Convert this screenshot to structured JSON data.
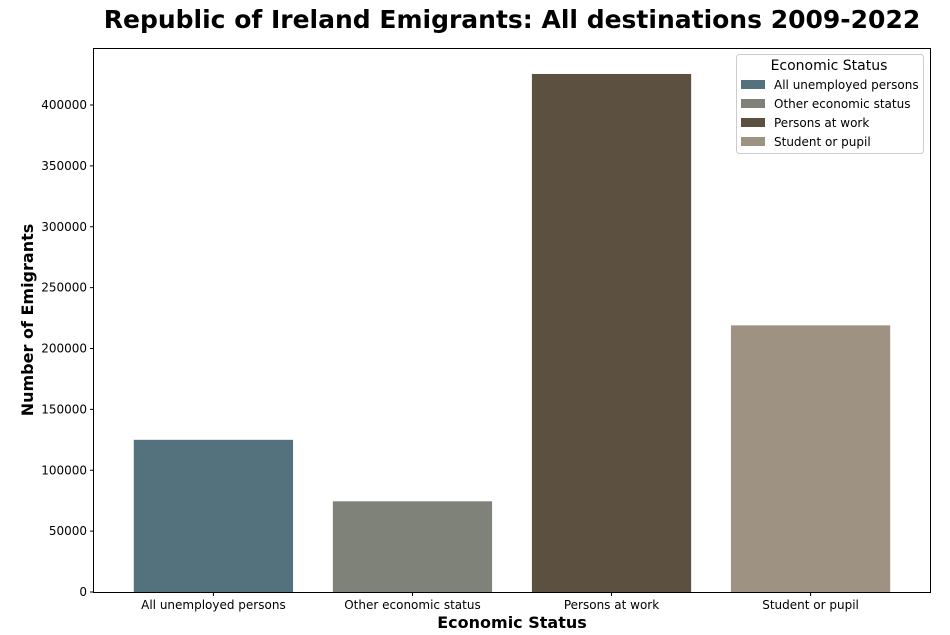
{
  "chart_data": {
    "type": "bar",
    "title": "Republic of Ireland Emigrants: All destinations 2009-2022",
    "xlabel": "Economic Status",
    "ylabel": "Number of Emigrants",
    "categories": [
      "All unemployed persons",
      "Other economic status",
      "Persons at work",
      "Student or pupil"
    ],
    "values": [
      125000,
      74500,
      425500,
      219000
    ],
    "colors": [
      "#53727d",
      "#7f8279",
      "#5c5040",
      "#9e9282"
    ],
    "ylim": [
      0,
      446000
    ],
    "yticks": [
      0,
      50000,
      100000,
      150000,
      200000,
      250000,
      300000,
      350000,
      400000
    ],
    "grid": false,
    "legend": {
      "title": "Economic Status",
      "placement": "top-right",
      "entries": [
        "All unemployed persons",
        "Other economic status",
        "Persons at work",
        "Student or pupil"
      ]
    }
  }
}
